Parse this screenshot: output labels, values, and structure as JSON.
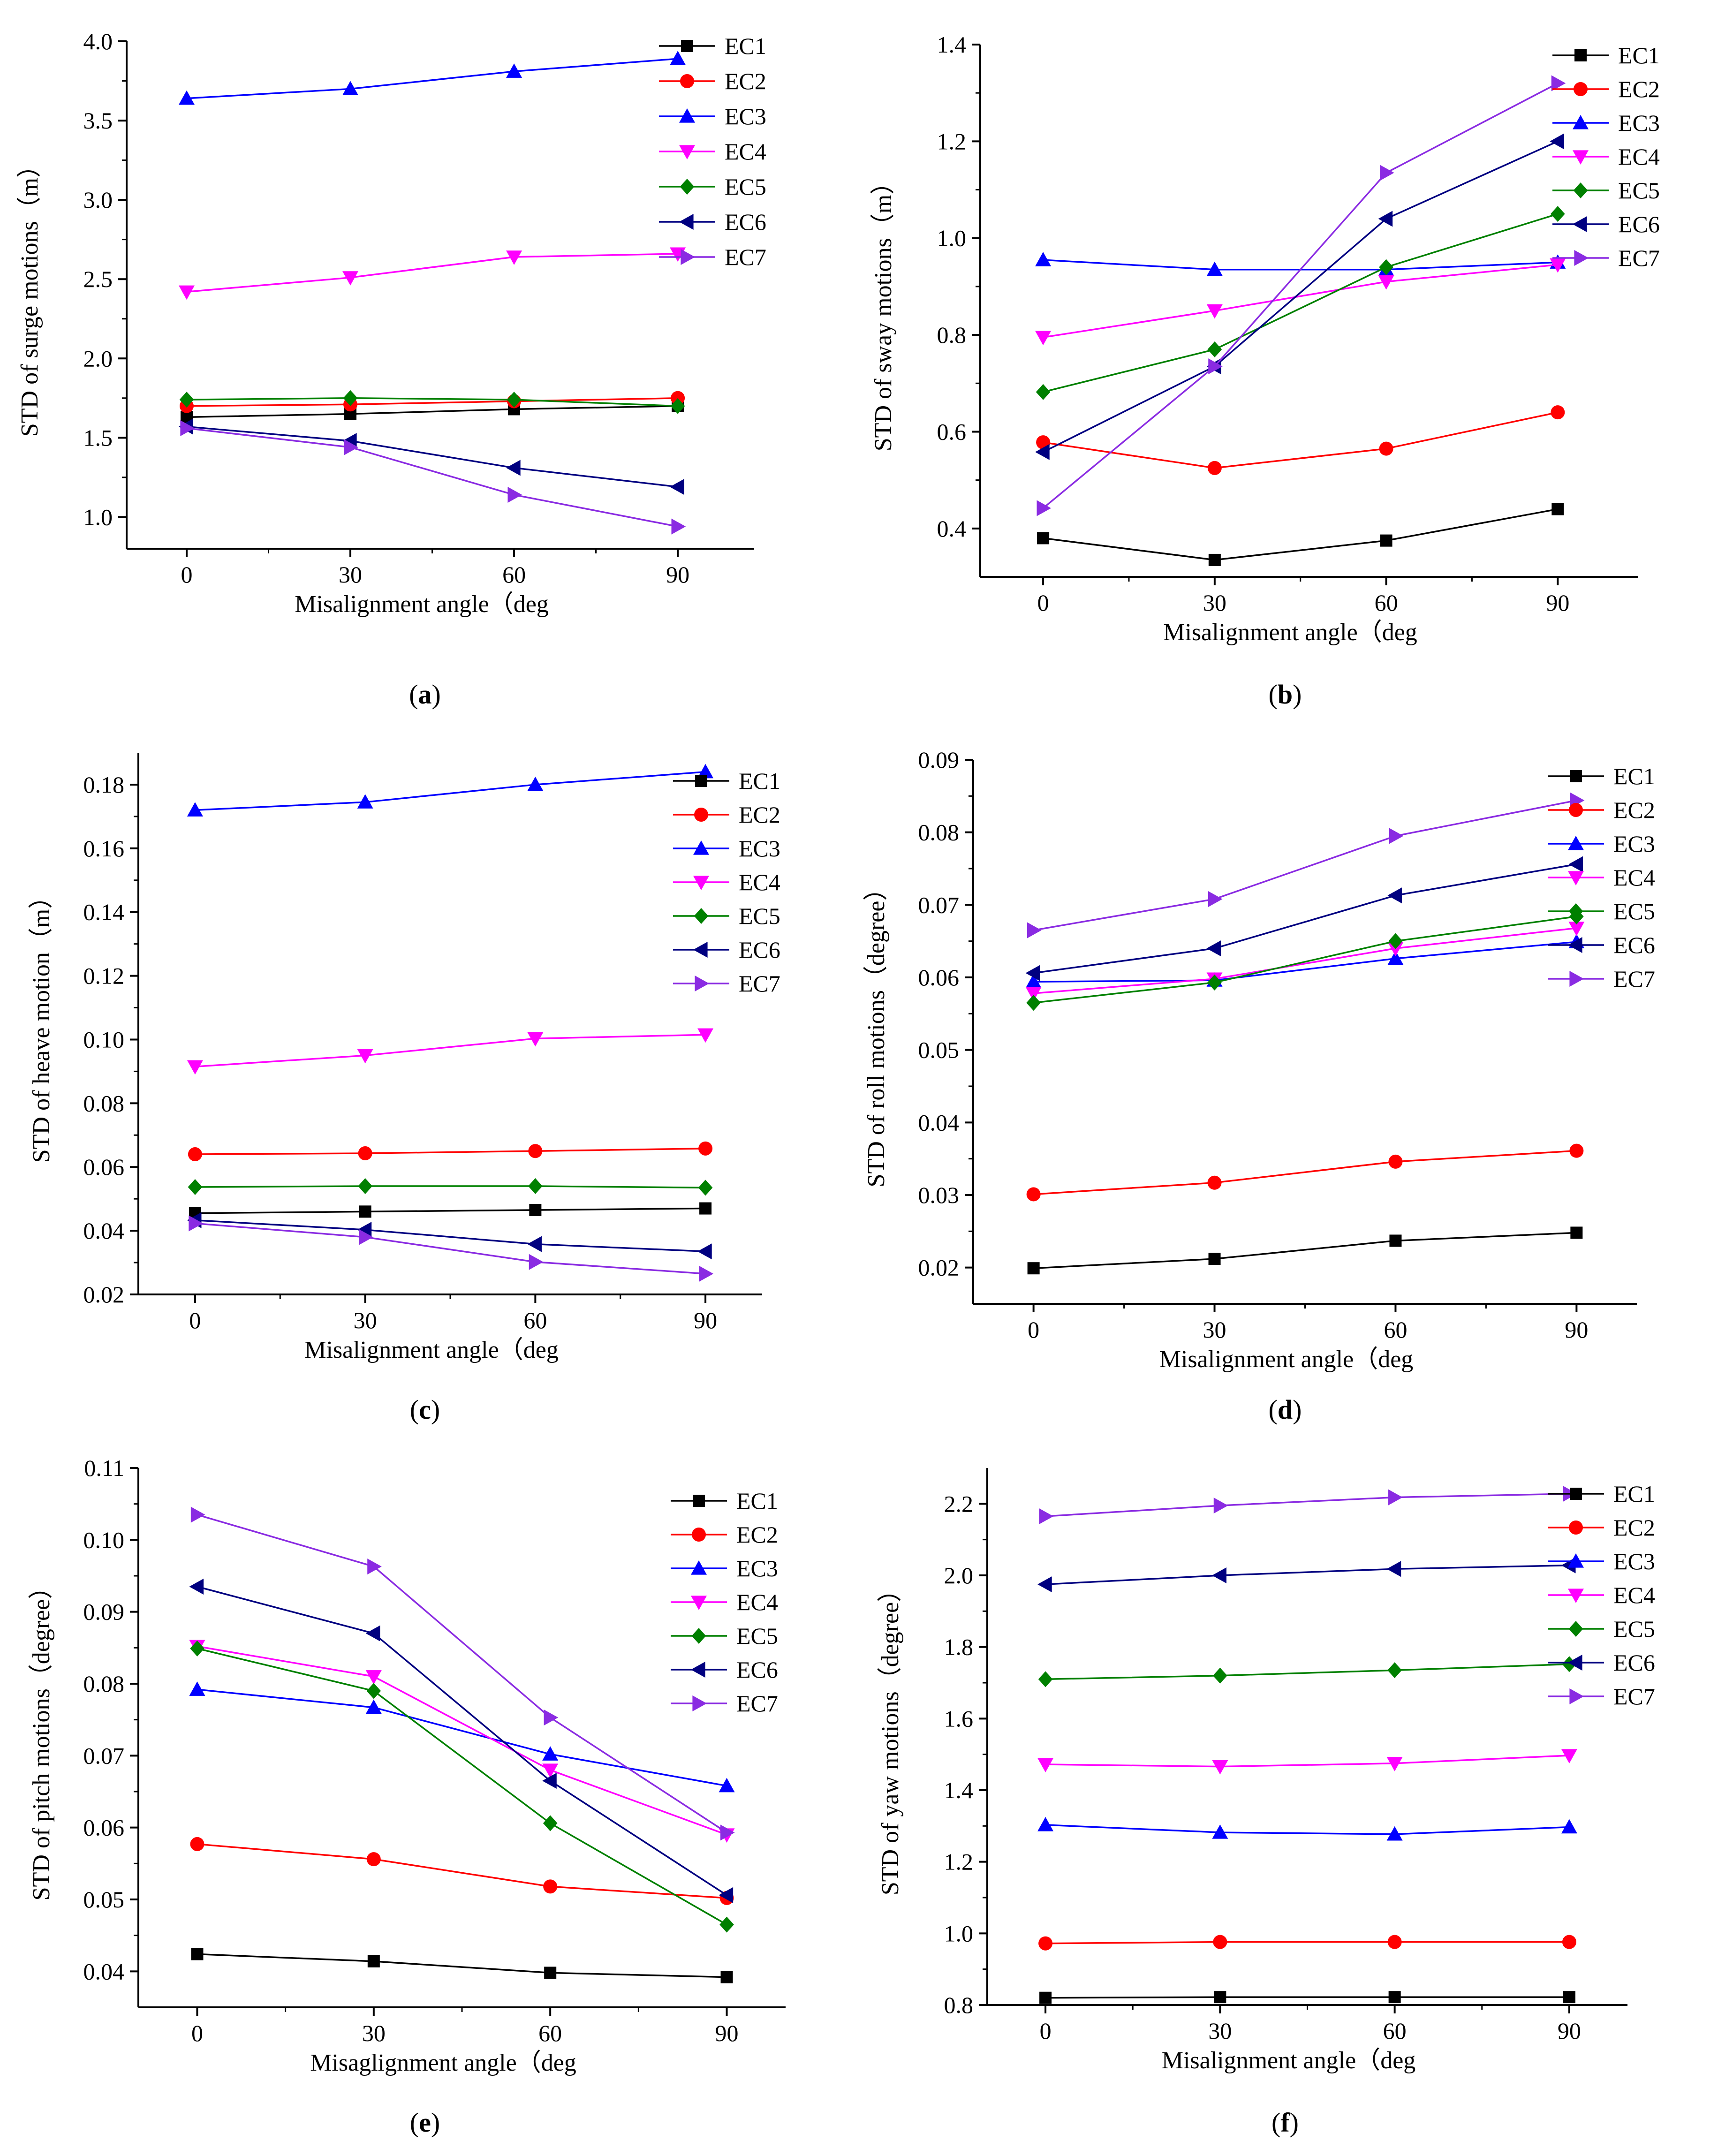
{
  "series_style": {
    "EC1": {
      "color": "#000000",
      "marker": "square"
    },
    "EC2": {
      "color": "#ff0000",
      "marker": "circle"
    },
    "EC3": {
      "color": "#0000ff",
      "marker": "triangle-up"
    },
    "EC4": {
      "color": "#ff00ff",
      "marker": "triangle-down"
    },
    "EC5": {
      "color": "#008000",
      "marker": "diamond"
    },
    "EC6": {
      "color": "#000080",
      "marker": "triangle-left"
    },
    "EC7": {
      "color": "#8a2be2",
      "marker": "triangle-right"
    }
  },
  "chart_data": [
    {
      "id": "a",
      "type": "line",
      "panel_label": "a",
      "xlabel": "Misalignment angle（deg",
      "ylabel": "STD of surge motions（m）",
      "x": [
        0,
        30,
        60,
        90
      ],
      "xlim": [
        -11,
        104
      ],
      "xticks": [
        0,
        30,
        60,
        90
      ],
      "xtick_labels": [
        "0",
        "30",
        "60",
        "90"
      ],
      "ylim": [
        0.8,
        4.0
      ],
      "yticks": [
        1.0,
        1.5,
        2.0,
        2.5,
        3.0,
        3.5,
        4.0
      ],
      "ytick_labels": [
        "1.0",
        "1.5",
        "2.0",
        "2.5",
        "3.0",
        "3.5",
        "4.0"
      ],
      "legend_position": "top-right",
      "series": [
        {
          "name": "EC1",
          "values": [
            1.63,
            1.65,
            1.68,
            1.7
          ]
        },
        {
          "name": "EC2",
          "values": [
            1.7,
            1.71,
            1.73,
            1.75
          ]
        },
        {
          "name": "EC3",
          "values": [
            3.64,
            3.7,
            3.81,
            3.89
          ]
        },
        {
          "name": "EC4",
          "values": [
            2.42,
            2.51,
            2.64,
            2.66
          ]
        },
        {
          "name": "EC5",
          "values": [
            1.74,
            1.75,
            1.74,
            1.7
          ]
        },
        {
          "name": "EC6",
          "values": [
            1.57,
            1.48,
            1.31,
            1.19
          ]
        },
        {
          "name": "EC7",
          "values": [
            1.56,
            1.44,
            1.14,
            0.94
          ]
        }
      ]
    },
    {
      "id": "b",
      "type": "line",
      "panel_label": "b",
      "xlabel": "Misalignment angle（deg",
      "ylabel": "STD of sway motions（m）",
      "x": [
        0,
        30,
        60,
        90
      ],
      "xlim": [
        -11,
        104
      ],
      "xticks": [
        0,
        30,
        60,
        90
      ],
      "xtick_labels": [
        "0",
        "30",
        "60",
        "90"
      ],
      "ylim": [
        0.3,
        1.4
      ],
      "yticks": [
        0.4,
        0.6,
        0.8,
        1.0,
        1.2,
        1.4
      ],
      "ytick_labels": [
        "0.4",
        "0.6",
        "0.8",
        "1.0",
        "1.2",
        "1.4"
      ],
      "legend_position": "top-right",
      "series": [
        {
          "name": "EC1",
          "values": [
            0.38,
            0.335,
            0.375,
            0.44
          ]
        },
        {
          "name": "EC2",
          "values": [
            0.578,
            0.525,
            0.565,
            0.64
          ]
        },
        {
          "name": "EC3",
          "values": [
            0.955,
            0.935,
            0.935,
            0.95
          ]
        },
        {
          "name": "EC4",
          "values": [
            0.795,
            0.85,
            0.91,
            0.945
          ]
        },
        {
          "name": "EC5",
          "values": [
            0.682,
            0.77,
            0.94,
            1.05
          ]
        },
        {
          "name": "EC6",
          "values": [
            0.558,
            0.735,
            1.04,
            1.2
          ]
        },
        {
          "name": "EC7",
          "values": [
            0.442,
            0.735,
            1.135,
            1.32
          ]
        }
      ]
    },
    {
      "id": "c",
      "type": "line",
      "panel_label": "c",
      "xlabel": "Misalignment angle（deg",
      "ylabel": "STD of heave motion（m）",
      "x": [
        0,
        30,
        60,
        90
      ],
      "xlim": [
        -10,
        100
      ],
      "xticks": [
        0,
        30,
        60,
        90
      ],
      "xtick_labels": [
        "0",
        "30",
        "60",
        "90"
      ],
      "ylim": [
        0.02,
        0.19
      ],
      "yticks": [
        0.02,
        0.04,
        0.06,
        0.08,
        0.1,
        0.12,
        0.14,
        0.16,
        0.18
      ],
      "ytick_labels": [
        "0.02",
        "0.04",
        "0.06",
        "0.08",
        "0.10",
        "0.12",
        "0.14",
        "0.16",
        "0.18"
      ],
      "legend_position": "top-right",
      "series": [
        {
          "name": "EC1",
          "values": [
            0.0455,
            0.046,
            0.0465,
            0.047
          ]
        },
        {
          "name": "EC2",
          "values": [
            0.064,
            0.0643,
            0.065,
            0.0658
          ]
        },
        {
          "name": "EC3",
          "values": [
            0.172,
            0.1745,
            0.18,
            0.184
          ]
        },
        {
          "name": "EC4",
          "values": [
            0.0915,
            0.095,
            0.1003,
            0.1015
          ]
        },
        {
          "name": "EC5",
          "values": [
            0.0537,
            0.054,
            0.054,
            0.0535
          ]
        },
        {
          "name": "EC6",
          "values": [
            0.0433,
            0.0403,
            0.0358,
            0.0335
          ]
        },
        {
          "name": "EC7",
          "values": [
            0.0423,
            0.038,
            0.0302,
            0.0265
          ]
        }
      ]
    },
    {
      "id": "d",
      "type": "line",
      "panel_label": "d",
      "xlabel": "Misalignment angle（deg",
      "ylabel": "STD of roll motions（degree）",
      "x": [
        0,
        30,
        60,
        90
      ],
      "xlim": [
        -10,
        100
      ],
      "xticks": [
        0,
        30,
        60,
        90
      ],
      "xtick_labels": [
        "0",
        "30",
        "60",
        "90"
      ],
      "ylim": [
        0.015,
        0.09
      ],
      "yticks": [
        0.02,
        0.03,
        0.04,
        0.05,
        0.06,
        0.07,
        0.08,
        0.09
      ],
      "ytick_labels": [
        "0.02",
        "0.03",
        "0.04",
        "0.05",
        "0.06",
        "0.07",
        "0.08",
        "0.09"
      ],
      "legend_position": "top-right",
      "series": [
        {
          "name": "EC1",
          "values": [
            0.0199,
            0.0212,
            0.0237,
            0.0248
          ]
        },
        {
          "name": "EC2",
          "values": [
            0.0301,
            0.0317,
            0.0346,
            0.0361
          ]
        },
        {
          "name": "EC3",
          "values": [
            0.0594,
            0.0596,
            0.0626,
            0.0649
          ]
        },
        {
          "name": "EC4",
          "values": [
            0.0578,
            0.0598,
            0.064,
            0.0668
          ]
        },
        {
          "name": "EC5",
          "values": [
            0.0565,
            0.0593,
            0.065,
            0.0684
          ]
        },
        {
          "name": "EC6",
          "values": [
            0.0606,
            0.064,
            0.0713,
            0.0756
          ]
        },
        {
          "name": "EC7",
          "values": [
            0.0665,
            0.0708,
            0.0795,
            0.0844
          ]
        }
      ]
    },
    {
      "id": "e",
      "type": "line",
      "panel_label": "e",
      "xlabel": "Misaglignment angle（deg",
      "ylabel": "STD of pitch motions（degree）",
      "x": [
        0,
        30,
        60,
        90
      ],
      "xlim": [
        -10,
        100
      ],
      "xticks": [
        0,
        30,
        60,
        90
      ],
      "xtick_labels": [
        "0",
        "30",
        "60",
        "90"
      ],
      "ylim": [
        0.035,
        0.11
      ],
      "yticks": [
        0.04,
        0.05,
        0.06,
        0.07,
        0.08,
        0.09,
        0.1,
        0.11
      ],
      "ytick_labels": [
        "0.04",
        "0.05",
        "0.06",
        "0.07",
        "0.08",
        "0.09",
        "0.10",
        "0.11"
      ],
      "legend_position": "top-right",
      "series": [
        {
          "name": "EC1",
          "values": [
            0.0424,
            0.0414,
            0.0398,
            0.0392
          ]
        },
        {
          "name": "EC2",
          "values": [
            0.0577,
            0.0556,
            0.0518,
            0.0502
          ]
        },
        {
          "name": "EC3",
          "values": [
            0.0792,
            0.0767,
            0.0702,
            0.0658
          ]
        },
        {
          "name": "EC4",
          "values": [
            0.0852,
            0.081,
            0.068,
            0.059
          ]
        },
        {
          "name": "EC5",
          "values": [
            0.0849,
            0.079,
            0.0606,
            0.0465
          ]
        },
        {
          "name": "EC6",
          "values": [
            0.0935,
            0.087,
            0.0665,
            0.0506
          ]
        },
        {
          "name": "EC7",
          "values": [
            0.1035,
            0.0963,
            0.0753,
            0.0593
          ]
        }
      ]
    },
    {
      "id": "f",
      "type": "line",
      "panel_label": "f",
      "xlabel": "Misalignment angle（deg",
      "ylabel": "STD of yaw motions（degree）",
      "x": [
        0,
        30,
        60,
        90
      ],
      "xlim": [
        -10,
        100
      ],
      "xticks": [
        0,
        30,
        60,
        90
      ],
      "xtick_labels": [
        "0",
        "30",
        "60",
        "90"
      ],
      "ylim": [
        0.8,
        2.3
      ],
      "yticks": [
        0.8,
        1.0,
        1.2,
        1.4,
        1.6,
        1.8,
        2.0,
        2.2
      ],
      "ytick_labels": [
        "0.8",
        "1.0",
        "1.2",
        "1.4",
        "1.6",
        "1.8",
        "2.0",
        "2.2"
      ],
      "legend_position": "top-right",
      "series": [
        {
          "name": "EC1",
          "values": [
            0.82,
            0.822,
            0.822,
            0.822
          ]
        },
        {
          "name": "EC2",
          "values": [
            0.972,
            0.976,
            0.976,
            0.976
          ]
        },
        {
          "name": "EC3",
          "values": [
            1.303,
            1.282,
            1.277,
            1.297
          ]
        },
        {
          "name": "EC4",
          "values": [
            1.472,
            1.466,
            1.475,
            1.497
          ]
        },
        {
          "name": "EC5",
          "values": [
            1.71,
            1.72,
            1.735,
            1.752
          ]
        },
        {
          "name": "EC6",
          "values": [
            1.975,
            2.0,
            2.018,
            2.028
          ]
        },
        {
          "name": "EC7",
          "values": [
            2.165,
            2.195,
            2.218,
            2.228
          ]
        }
      ]
    }
  ]
}
